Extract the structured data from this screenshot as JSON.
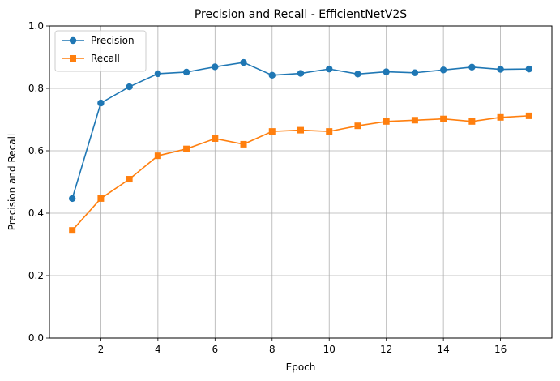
{
  "chart_data": {
    "type": "line",
    "title": "Precision and Recall - EfficientNetV2S",
    "xlabel": "Epoch",
    "ylabel": "Precision and Recall",
    "x": [
      1,
      2,
      3,
      4,
      5,
      6,
      7,
      8,
      9,
      10,
      11,
      12,
      13,
      14,
      15,
      16,
      17
    ],
    "xlim": [
      0.2,
      17.8
    ],
    "ylim": [
      0.0,
      1.0
    ],
    "xticks": [
      2,
      4,
      6,
      8,
      10,
      12,
      14,
      16
    ],
    "yticks": [
      0.0,
      0.2,
      0.4,
      0.6,
      0.8,
      1.0
    ],
    "xtick_labels": [
      "2",
      "4",
      "6",
      "8",
      "10",
      "12",
      "14",
      "16"
    ],
    "ytick_labels": [
      "0.0",
      "0.2",
      "0.4",
      "0.6",
      "0.8",
      "1.0"
    ],
    "grid": true,
    "legend_position": "top-left",
    "series": [
      {
        "name": "Precision",
        "color": "#1f77b4",
        "marker": "circle",
        "values": [
          0.447,
          0.753,
          0.805,
          0.847,
          0.852,
          0.869,
          0.883,
          0.842,
          0.848,
          0.862,
          0.846,
          0.853,
          0.85,
          0.859,
          0.868,
          0.861,
          0.862
        ]
      },
      {
        "name": "Recall",
        "color": "#ff7f0e",
        "marker": "square",
        "values": [
          0.345,
          0.447,
          0.509,
          0.584,
          0.606,
          0.639,
          0.621,
          0.662,
          0.666,
          0.662,
          0.68,
          0.694,
          0.698,
          0.702,
          0.694,
          0.707,
          0.712
        ]
      }
    ]
  }
}
